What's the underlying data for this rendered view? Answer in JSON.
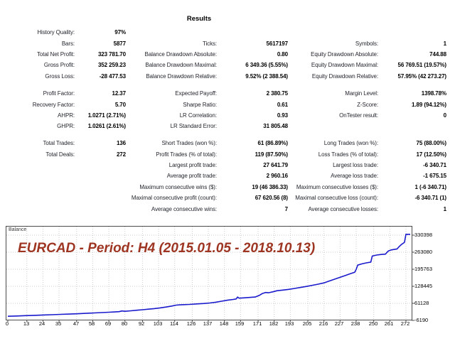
{
  "report": {
    "title": "Results",
    "blocks": [
      {
        "rows": [
          [
            "History Quality:",
            "97%",
            "",
            "",
            "",
            ""
          ],
          [
            "Bars:",
            "5877",
            "Ticks:",
            "5617197",
            "Symbols:",
            "1"
          ],
          [
            "Total Net Profit:",
            "323 781.70",
            "Balance Drawdown Absolute:",
            "0.80",
            "Equity Drawdown Absolute:",
            "744.88"
          ],
          [
            "Gross Profit:",
            "352 259.23",
            "Balance Drawdown Maximal:",
            "6 349.36 (5.55%)",
            "Equity Drawdown Maximal:",
            "56 769.51 (19.57%)"
          ],
          [
            "Gross Loss:",
            "-28 477.53",
            "Balance Drawdown Relative:",
            "9.52% (2 388.54)",
            "Equity Drawdown Relative:",
            "57.95% (42 273.27)"
          ]
        ]
      },
      {
        "rows": [
          [
            "Profit Factor:",
            "12.37",
            "Expected Payoff:",
            "2 380.75",
            "Margin Level:",
            "1398.78%"
          ],
          [
            "Recovery Factor:",
            "5.70",
            "Sharpe Ratio:",
            "0.61",
            "Z-Score:",
            "1.89 (94.12%)"
          ],
          [
            "AHPR:",
            "1.0271 (2.71%)",
            "LR Correlation:",
            "0.93",
            "OnTester result:",
            "0"
          ],
          [
            "GHPR:",
            "1.0261 (2.61%)",
            "LR Standard Error:",
            "31 805.48",
            "",
            ""
          ]
        ]
      },
      {
        "rows": [
          [
            "Total Trades:",
            "136",
            "Short Trades (won %):",
            "61 (86.89%)",
            "Long Trades (won %):",
            "75 (88.00%)"
          ],
          [
            "Total Deals:",
            "272",
            "Profit Trades (% of total):",
            "119 (87.50%)",
            "Loss Trades (% of total):",
            "17 (12.50%)"
          ],
          [
            "",
            "",
            "Largest profit trade:",
            "27 641.79",
            "Largest loss trade:",
            "-6 340.71"
          ],
          [
            "",
            "",
            "Average profit trade:",
            "2 960.16",
            "Average loss trade:",
            "-1 675.15"
          ],
          [
            "",
            "",
            "Maximum consecutive wins ($):",
            "19 (46 386.33)",
            "Maximum consecutive losses ($):",
            "1 (-6 340.71)"
          ],
          [
            "",
            "",
            "Maximal consecutive profit (count):",
            "67 620.56 (8)",
            "Maximal consecutive loss (count):",
            "-6 340.71 (1)"
          ],
          [
            "",
            "",
            "Average consecutive wins:",
            "7",
            "Average consecutive losses:",
            "1"
          ]
        ]
      }
    ]
  },
  "chart_data": {
    "type": "line",
    "title": "Balance",
    "annotation": "EURCAD - Period: H4 (2015.01.05 - 2018.10.13)",
    "annotation_color": "#9d3522",
    "line_color": "#1a1acd",
    "grid": true,
    "grid_color": "#cdcdcd",
    "legend_position": "top-left",
    "xlabel": "",
    "ylabel": "",
    "x_ticks": [
      0,
      13,
      24,
      35,
      47,
      58,
      69,
      80,
      92,
      103,
      114,
      126,
      137,
      148,
      159,
      171,
      182,
      193,
      205,
      216,
      227,
      238,
      250,
      261,
      272
    ],
    "y_ticks": [
      330398,
      263080,
      195763,
      128445,
      61128,
      -6190
    ],
    "xlim": [
      0,
      276
    ],
    "ylim": [
      -6190,
      364070
    ],
    "series": [
      {
        "name": "Balance",
        "points": [
          [
            0,
            10000
          ],
          [
            6,
            11200
          ],
          [
            12,
            12500
          ],
          [
            18,
            13800
          ],
          [
            24,
            15000
          ],
          [
            30,
            16300
          ],
          [
            36,
            17700
          ],
          [
            42,
            18900
          ],
          [
            47,
            20000
          ],
          [
            53,
            21700
          ],
          [
            59,
            23400
          ],
          [
            64,
            24800
          ],
          [
            69,
            26000
          ],
          [
            73,
            27200
          ],
          [
            76,
            28300
          ],
          [
            78,
            31000
          ],
          [
            80,
            29800
          ],
          [
            84,
            31800
          ],
          [
            88,
            33900
          ],
          [
            92,
            36000
          ],
          [
            96,
            38200
          ],
          [
            100,
            40500
          ],
          [
            104,
            43200
          ],
          [
            108,
            46500
          ],
          [
            112,
            50500
          ],
          [
            115,
            54000
          ],
          [
            119,
            55800
          ],
          [
            124,
            57000
          ],
          [
            129,
            58800
          ],
          [
            134,
            60500
          ],
          [
            138,
            62400
          ],
          [
            142,
            65500
          ],
          [
            146,
            69500
          ],
          [
            150,
            73500
          ],
          [
            154,
            76500
          ],
          [
            156,
            78500
          ],
          [
            157,
            86000
          ],
          [
            158,
            81500
          ],
          [
            161,
            82800
          ],
          [
            165,
            84300
          ],
          [
            169,
            86200
          ],
          [
            172,
            93000
          ],
          [
            174,
            100000
          ],
          [
            176,
            104000
          ],
          [
            178,
            103000
          ],
          [
            181,
            106500
          ],
          [
            184,
            111000
          ],
          [
            188,
            113500
          ],
          [
            192,
            116500
          ],
          [
            196,
            120000
          ],
          [
            200,
            124000
          ],
          [
            204,
            128000
          ],
          [
            208,
            132500
          ],
          [
            212,
            137000
          ],
          [
            216,
            142000
          ],
          [
            219,
            148000
          ],
          [
            222,
            154000
          ],
          [
            225,
            160000
          ],
          [
            228,
            166000
          ],
          [
            231,
            172000
          ],
          [
            234,
            178000
          ],
          [
            237,
            184000
          ],
          [
            238,
            195000
          ],
          [
            239,
            212000
          ],
          [
            242,
            217000
          ],
          [
            245,
            221000
          ],
          [
            248,
            224000
          ],
          [
            249,
            248000
          ],
          [
            252,
            252000
          ],
          [
            255,
            254000
          ],
          [
            258,
            255500
          ],
          [
            259,
            262000
          ],
          [
            260,
            268000
          ],
          [
            262,
            272000
          ],
          [
            264,
            274000
          ],
          [
            266,
            276000
          ],
          [
            267,
            283000
          ],
          [
            268,
            289000
          ],
          [
            269,
            294000
          ],
          [
            270,
            298000
          ],
          [
            271,
            302000
          ],
          [
            272,
            333781
          ]
        ]
      }
    ]
  }
}
